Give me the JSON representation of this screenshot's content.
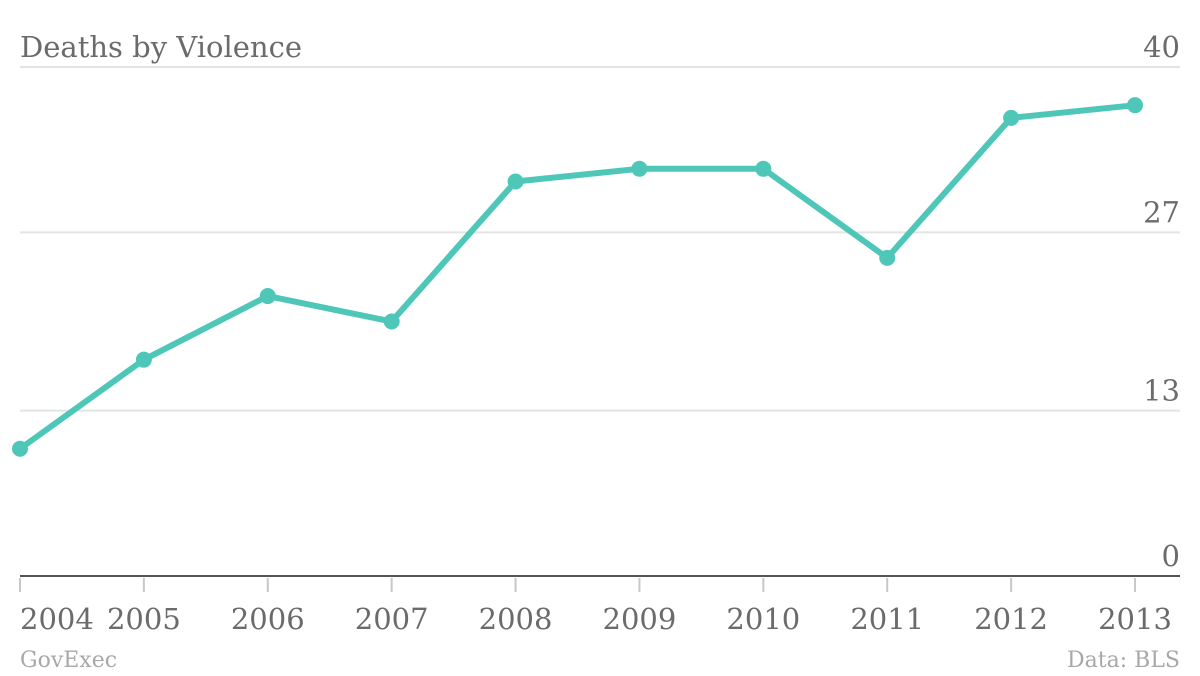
{
  "chart_data": {
    "type": "line",
    "title": "Deaths by Violence",
    "xlabel": "",
    "ylabel": "",
    "categories": [
      "2004",
      "2005",
      "2006",
      "2007",
      "2008",
      "2009",
      "2010",
      "2011",
      "2012",
      "2013"
    ],
    "series": [
      {
        "values": [
          10,
          17,
          22,
          20,
          31,
          32,
          32,
          25,
          36,
          37
        ]
      }
    ],
    "ylim": [
      0,
      40
    ],
    "yticks": [
      "0",
      "13",
      "27",
      "40"
    ],
    "grid": true,
    "y_axis_side": "right",
    "line_color": "#4ec7b9"
  },
  "footer": {
    "source_left": "GovExec",
    "source_right": "Data: BLS"
  }
}
